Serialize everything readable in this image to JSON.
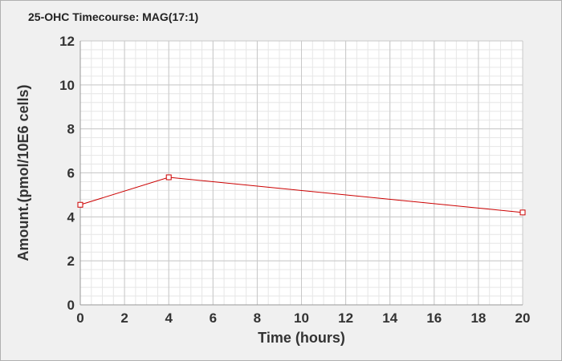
{
  "chart_data": {
    "type": "line",
    "title": "25-OHC Timecourse: MAG(17:1)",
    "xlabel": "Time (hours)",
    "ylabel": "Amount.(pmol/10E6 cells)",
    "xlim": [
      0,
      20
    ],
    "ylim": [
      0,
      12
    ],
    "xticks": [
      0,
      2,
      4,
      6,
      8,
      10,
      12,
      14,
      16,
      18,
      20
    ],
    "yticks": [
      0,
      2,
      4,
      6,
      8,
      10,
      12
    ],
    "grid": true,
    "series": [
      {
        "color": "#cc0000",
        "marker": "open-square",
        "x": [
          0,
          4,
          20
        ],
        "y": [
          4.55,
          5.8,
          4.2
        ]
      }
    ]
  },
  "colors": {
    "background": "#f0f0f0",
    "plot_area": "#ffffff",
    "major_grid": "#c8c8c8",
    "minor_grid": "#e6e6e6",
    "series_line": "#cc0000"
  }
}
